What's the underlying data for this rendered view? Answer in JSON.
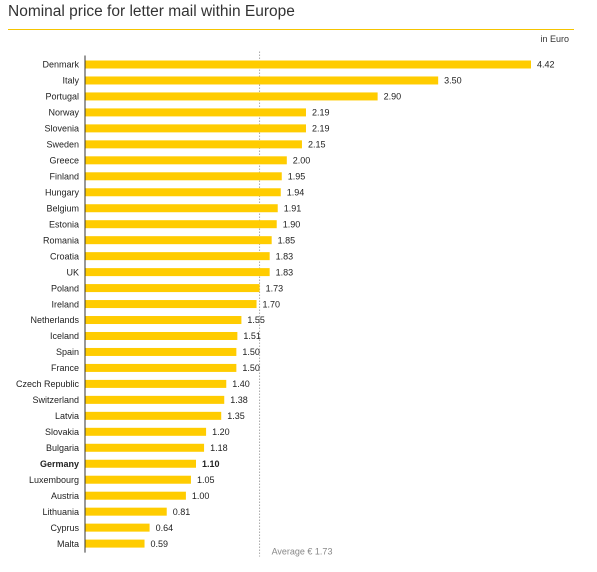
{
  "title": "Nominal price for letter mail within Europe",
  "unit_label": "in Euro",
  "average_label": "Average € 1.73",
  "chart_data": {
    "type": "bar",
    "orientation": "horizontal",
    "categories": [
      "Denmark",
      "Italy",
      "Portugal",
      "Norway",
      "Slovenia",
      "Sweden",
      "Greece",
      "Finland",
      "Hungary",
      "Belgium",
      "Estonia",
      "Romania",
      "Croatia",
      "UK",
      "Poland",
      "Ireland",
      "Netherlands",
      "Iceland",
      "Spain",
      "France",
      "Czech Republic",
      "Switzerland",
      "Latvia",
      "Slovakia",
      "Bulgaria",
      "Germany",
      "Luxembourg",
      "Austria",
      "Lithuania",
      "Cyprus",
      "Malta"
    ],
    "values": [
      4.42,
      3.5,
      2.9,
      2.19,
      2.19,
      2.15,
      2.0,
      1.95,
      1.94,
      1.91,
      1.9,
      1.85,
      1.83,
      1.83,
      1.73,
      1.7,
      1.55,
      1.51,
      1.5,
      1.5,
      1.4,
      1.38,
      1.35,
      1.2,
      1.18,
      1.1,
      1.05,
      1.0,
      0.81,
      0.64,
      0.59
    ],
    "value_labels": [
      "4.42",
      "3.50",
      "2.90",
      "2.19",
      "2.19",
      "2.15",
      "2.00",
      "1.95",
      "1.94",
      "1.91",
      "1.90",
      "1.85",
      "1.83",
      "1.83",
      "1.73",
      "1.70",
      "1.55",
      "1.51",
      "1.50",
      "1.50",
      "1.40",
      "1.38",
      "1.35",
      "1.20",
      "1.18",
      "1.10",
      "1.05",
      "1.00",
      "0.81",
      "0.64",
      "0.59"
    ],
    "highlight": "Germany",
    "average": 1.73,
    "bar_color": "#ffcc00",
    "average_line_color": "#aaaaaa",
    "xlim": [
      0,
      4.42
    ]
  }
}
